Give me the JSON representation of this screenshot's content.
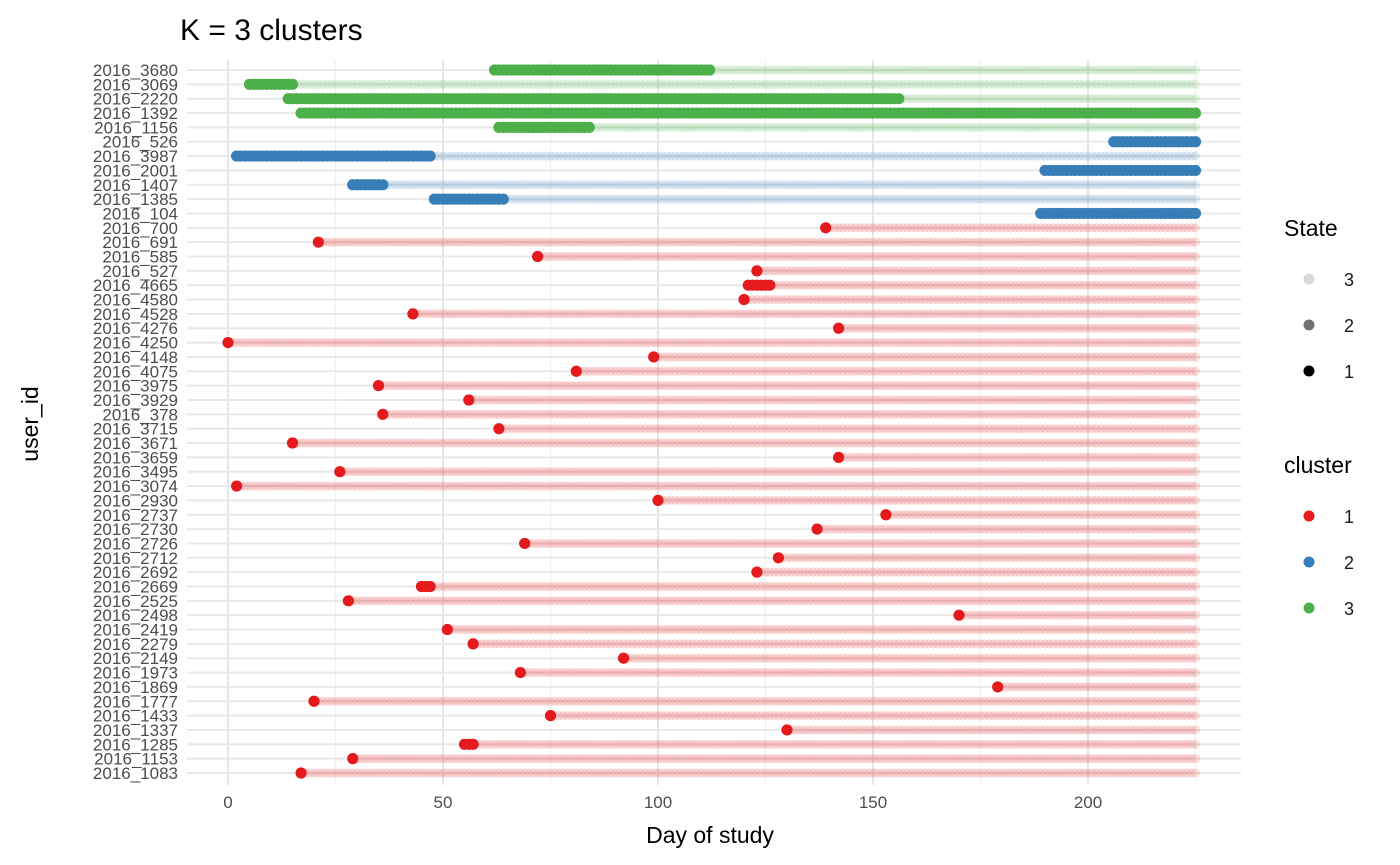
{
  "chart_data": {
    "type": "scatter",
    "title": "K = 3 clusters",
    "xlabel": "Day of study",
    "ylabel": "user_id",
    "xlim": [
      -9,
      235
    ],
    "x_ticks": [
      0,
      50,
      100,
      150,
      200
    ],
    "x_end": 225,
    "grid": true,
    "legend_position": "right",
    "cluster_colors": {
      "1": "#e41a1c",
      "2": "#377eb8",
      "3": "#4daf4a"
    },
    "state_legend": {
      "title": "State",
      "items": [
        {
          "label": "3",
          "alpha": 0.15
        },
        {
          "label": "2",
          "alpha": 0.55
        },
        {
          "label": "1",
          "alpha": 1.0
        }
      ]
    },
    "cluster_legend": {
      "title": "cluster",
      "items": [
        {
          "label": "1",
          "color": "#e41a1c"
        },
        {
          "label": "2",
          "color": "#377eb8"
        },
        {
          "label": "3",
          "color": "#4daf4a"
        }
      ]
    },
    "users": [
      {
        "id": "2016_3680",
        "cluster": 3,
        "state1": [
          [
            62,
            112
          ]
        ]
      },
      {
        "id": "2016_3069",
        "cluster": 3,
        "state1": [
          [
            5,
            15
          ]
        ]
      },
      {
        "id": "2016_2220",
        "cluster": 3,
        "state1": [
          [
            14,
            156
          ]
        ]
      },
      {
        "id": "2016_1392",
        "cluster": 3,
        "state1": [
          [
            17,
            225
          ]
        ]
      },
      {
        "id": "2016_1156",
        "cluster": 3,
        "state1": [
          [
            63,
            84
          ]
        ]
      },
      {
        "id": "2016_526",
        "cluster": 2,
        "state1": [
          [
            206,
            225
          ]
        ]
      },
      {
        "id": "2016_3987",
        "cluster": 2,
        "state1": [
          [
            2,
            47
          ]
        ]
      },
      {
        "id": "2016_2001",
        "cluster": 2,
        "state1": [
          [
            190,
            225
          ]
        ]
      },
      {
        "id": "2016_1407",
        "cluster": 2,
        "state1": [
          [
            29,
            36
          ]
        ]
      },
      {
        "id": "2016_1385",
        "cluster": 2,
        "state1": [
          [
            48,
            64
          ]
        ]
      },
      {
        "id": "2016_104",
        "cluster": 2,
        "state1": [
          [
            189,
            225
          ]
        ]
      },
      {
        "id": "2016_700",
        "cluster": 1,
        "state1": [
          [
            139,
            139
          ]
        ]
      },
      {
        "id": "2016_691",
        "cluster": 1,
        "state1": [
          [
            21,
            21
          ]
        ]
      },
      {
        "id": "2016_585",
        "cluster": 1,
        "state1": [
          [
            72,
            72
          ]
        ]
      },
      {
        "id": "2016_527",
        "cluster": 1,
        "state1": [
          [
            123,
            123
          ]
        ]
      },
      {
        "id": "2016_4665",
        "cluster": 1,
        "state1": [
          [
            121,
            126
          ]
        ]
      },
      {
        "id": "2016_4580",
        "cluster": 1,
        "state1": [
          [
            120,
            120
          ]
        ]
      },
      {
        "id": "2016_4528",
        "cluster": 1,
        "state1": [
          [
            43,
            43
          ]
        ]
      },
      {
        "id": "2016_4276",
        "cluster": 1,
        "state1": [
          [
            142,
            142
          ]
        ]
      },
      {
        "id": "2016_4250",
        "cluster": 1,
        "state1": [
          [
            0,
            0
          ]
        ]
      },
      {
        "id": "2016_4148",
        "cluster": 1,
        "state1": [
          [
            99,
            99
          ]
        ]
      },
      {
        "id": "2016_4075",
        "cluster": 1,
        "state1": [
          [
            81,
            81
          ]
        ]
      },
      {
        "id": "2016_3975",
        "cluster": 1,
        "state1": [
          [
            35,
            35
          ]
        ]
      },
      {
        "id": "2016_3929",
        "cluster": 1,
        "state1": [
          [
            56,
            56
          ]
        ]
      },
      {
        "id": "2016_378",
        "cluster": 1,
        "state1": [
          [
            36,
            36
          ]
        ]
      },
      {
        "id": "2016_3715",
        "cluster": 1,
        "state1": [
          [
            63,
            63
          ]
        ]
      },
      {
        "id": "2016_3671",
        "cluster": 1,
        "state1": [
          [
            15,
            15
          ]
        ]
      },
      {
        "id": "2016_3659",
        "cluster": 1,
        "state1": [
          [
            142,
            142
          ]
        ]
      },
      {
        "id": "2016_3495",
        "cluster": 1,
        "state1": [
          [
            26,
            26
          ]
        ]
      },
      {
        "id": "2016_3074",
        "cluster": 1,
        "state1": [
          [
            2,
            2
          ]
        ]
      },
      {
        "id": "2016_2930",
        "cluster": 1,
        "state1": [
          [
            100,
            100
          ]
        ]
      },
      {
        "id": "2016_2737",
        "cluster": 1,
        "state1": [
          [
            153,
            153
          ]
        ]
      },
      {
        "id": "2016_2730",
        "cluster": 1,
        "state1": [
          [
            137,
            137
          ]
        ]
      },
      {
        "id": "2016_2726",
        "cluster": 1,
        "state1": [
          [
            69,
            69
          ]
        ]
      },
      {
        "id": "2016_2712",
        "cluster": 1,
        "state1": [
          [
            128,
            128
          ]
        ]
      },
      {
        "id": "2016_2692",
        "cluster": 1,
        "state1": [
          [
            123,
            123
          ]
        ]
      },
      {
        "id": "2016_2669",
        "cluster": 1,
        "state1": [
          [
            45,
            47
          ]
        ]
      },
      {
        "id": "2016_2525",
        "cluster": 1,
        "state1": [
          [
            28,
            28
          ]
        ]
      },
      {
        "id": "2016_2498",
        "cluster": 1,
        "state1": [
          [
            170,
            170
          ]
        ]
      },
      {
        "id": "2016_2419",
        "cluster": 1,
        "state1": [
          [
            51,
            51
          ]
        ]
      },
      {
        "id": "2016_2279",
        "cluster": 1,
        "state1": [
          [
            57,
            57
          ]
        ]
      },
      {
        "id": "2016_2149",
        "cluster": 1,
        "state1": [
          [
            92,
            92
          ]
        ]
      },
      {
        "id": "2016_1973",
        "cluster": 1,
        "state1": [
          [
            68,
            68
          ]
        ]
      },
      {
        "id": "2016_1869",
        "cluster": 1,
        "state1": [
          [
            179,
            179
          ]
        ]
      },
      {
        "id": "2016_1777",
        "cluster": 1,
        "state1": [
          [
            20,
            20
          ]
        ]
      },
      {
        "id": "2016_1433",
        "cluster": 1,
        "state1": [
          [
            75,
            75
          ]
        ]
      },
      {
        "id": "2016_1337",
        "cluster": 1,
        "state1": [
          [
            130,
            130
          ]
        ]
      },
      {
        "id": "2016_1285",
        "cluster": 1,
        "state1": [
          [
            55,
            57
          ]
        ]
      },
      {
        "id": "2016_1153",
        "cluster": 1,
        "state1": [
          [
            29,
            29
          ]
        ]
      },
      {
        "id": "2016_1083",
        "cluster": 1,
        "state1": [
          [
            17,
            17
          ]
        ]
      }
    ]
  }
}
